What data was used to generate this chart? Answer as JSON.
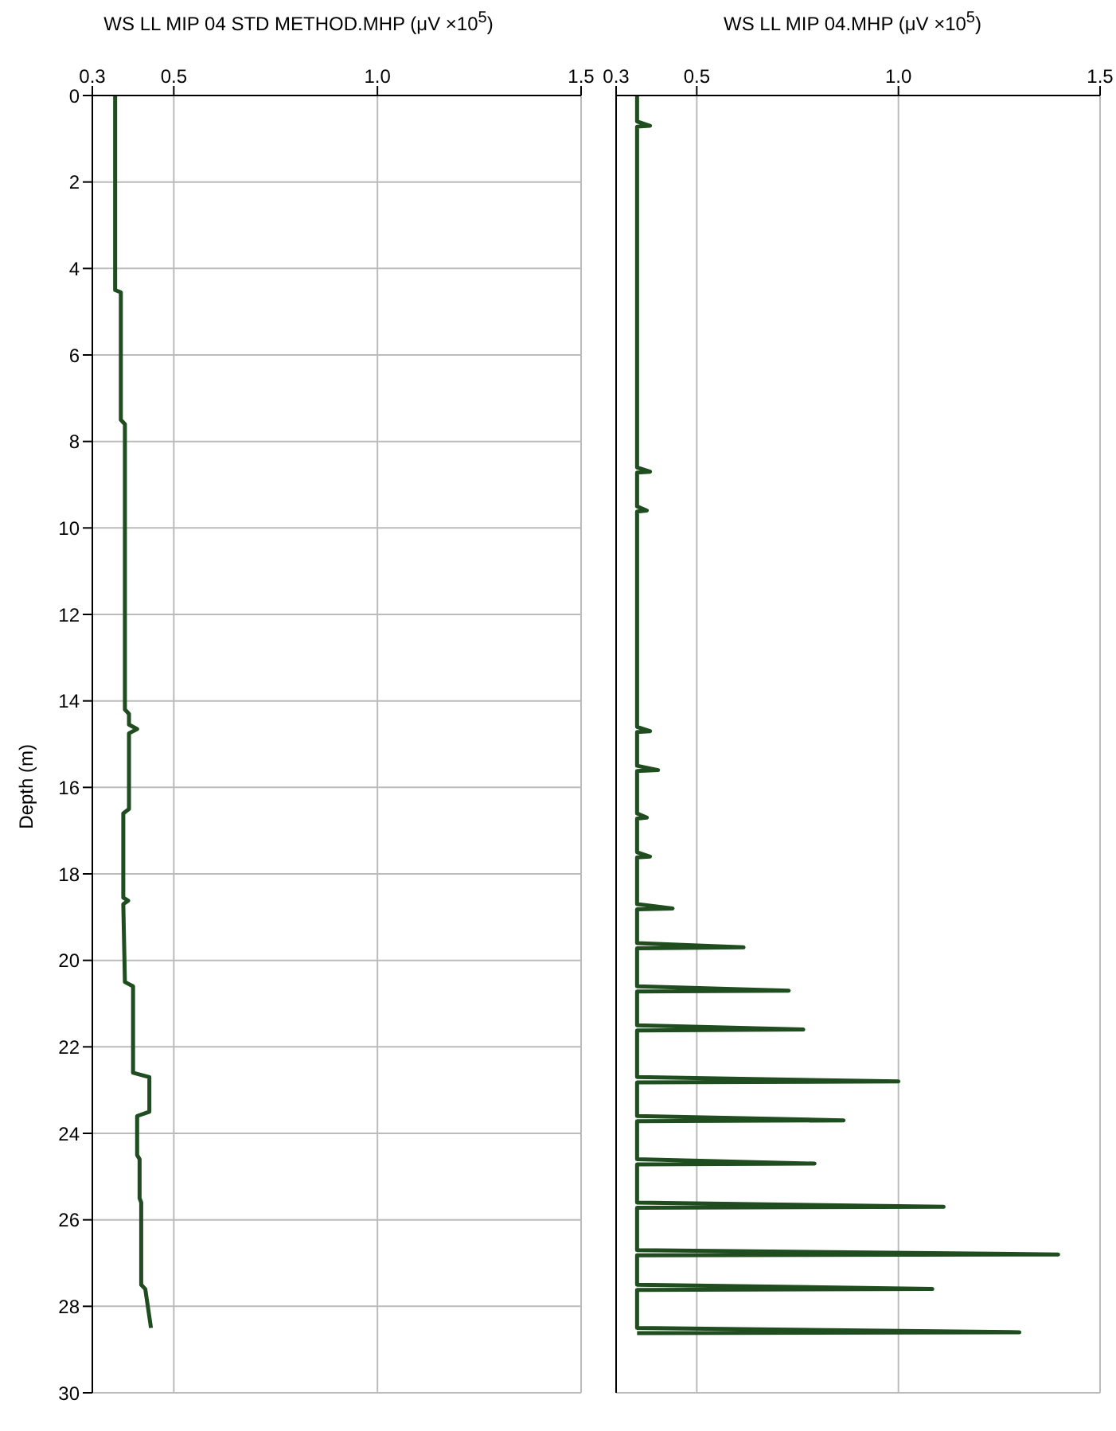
{
  "chart_data": [
    {
      "type": "line",
      "title": "WS LL MIP 04 STD METHOD.MHP (μV ×10$^{5}$)",
      "ylabel": "Depth (m)",
      "xlim": [
        0.3,
        1.5
      ],
      "xticks": [
        0.3,
        0.5,
        {
          "value": 1,
          "label": "1.0"
        },
        1.5
      ],
      "ylim": [
        30,
        0
      ],
      "yticks": [
        0,
        2,
        4,
        6,
        8,
        10,
        12,
        14,
        16,
        18,
        20,
        22,
        24,
        26,
        28,
        30
      ],
      "grid": true,
      "series": [
        {
          "color": "#1f4d1f",
          "x": [
            0.356,
            0.356,
            0.37,
            0.37,
            0.38,
            0.38,
            0.39,
            0.39,
            0.41,
            0.39,
            0.39,
            0.376,
            0.376,
            0.388,
            0.376,
            0.38,
            0.4,
            0.4,
            0.44,
            0.44,
            0.41,
            0.41,
            0.416,
            0.416,
            0.42,
            0.42,
            0.43,
            0.444
          ],
          "values": [
            0,
            4.5,
            4.55,
            7.5,
            7.6,
            14.2,
            14.3,
            14.55,
            14.65,
            14.75,
            16.5,
            16.6,
            18.55,
            18.62,
            18.7,
            20.5,
            20.6,
            22.6,
            22.7,
            23.5,
            23.6,
            24.5,
            24.6,
            25.5,
            25.6,
            27.5,
            27.6,
            28.5
          ]
        }
      ]
    },
    {
      "type": "line",
      "title": "WS LL MIP 04.MHP (μV ×10$^{5}$)",
      "xlim": [
        0.3,
        1.5
      ],
      "xticks": [
        0.3,
        0.5,
        {
          "value": 1,
          "label": "1.0"
        },
        1.5
      ],
      "ylim": [
        30,
        0
      ],
      "yticks": [
        0,
        2,
        4,
        6,
        8,
        10,
        12,
        14,
        16,
        18,
        20,
        22,
        24,
        26,
        28,
        30
      ],
      "grid": true,
      "tick_labels": "x",
      "series": [
        {
          "color": "#1f4d1f",
          "x": [
            0.352,
            0.352,
            0.384,
            0.352,
            0.352,
            0.384,
            0.352,
            0.352,
            0.376,
            0.352,
            0.352,
            0.384,
            0.352,
            0.352,
            0.404,
            0.352,
            0.352,
            0.376,
            0.352,
            0.352,
            0.384,
            0.352,
            0.352,
            0.44,
            0.352,
            0.352,
            0.616,
            0.352,
            0.352,
            0.728,
            0.352,
            0.352,
            0.764,
            0.352,
            0.352,
            1.0,
            0.352,
            0.352,
            0.864,
            0.352,
            0.352,
            0.792,
            0.352,
            0.352,
            1.112,
            0.352,
            0.352,
            1.396,
            0.352,
            0.352,
            1.084,
            0.352,
            0.352,
            1.3,
            0.352
          ],
          "values": [
            0,
            0.6,
            0.7,
            0.72,
            8.6,
            8.7,
            8.72,
            9.5,
            9.6,
            9.62,
            14.6,
            14.7,
            14.72,
            15.5,
            15.6,
            15.62,
            16.6,
            16.7,
            16.72,
            17.5,
            17.6,
            17.62,
            18.7,
            18.8,
            18.82,
            19.6,
            19.7,
            19.72,
            20.6,
            20.7,
            20.72,
            21.5,
            21.6,
            21.62,
            22.7,
            22.8,
            22.82,
            23.6,
            23.7,
            23.72,
            24.6,
            24.7,
            24.72,
            25.6,
            25.7,
            25.72,
            26.7,
            26.8,
            26.82,
            27.5,
            27.6,
            27.62,
            28.5,
            28.6,
            28.62
          ]
        }
      ]
    }
  ]
}
